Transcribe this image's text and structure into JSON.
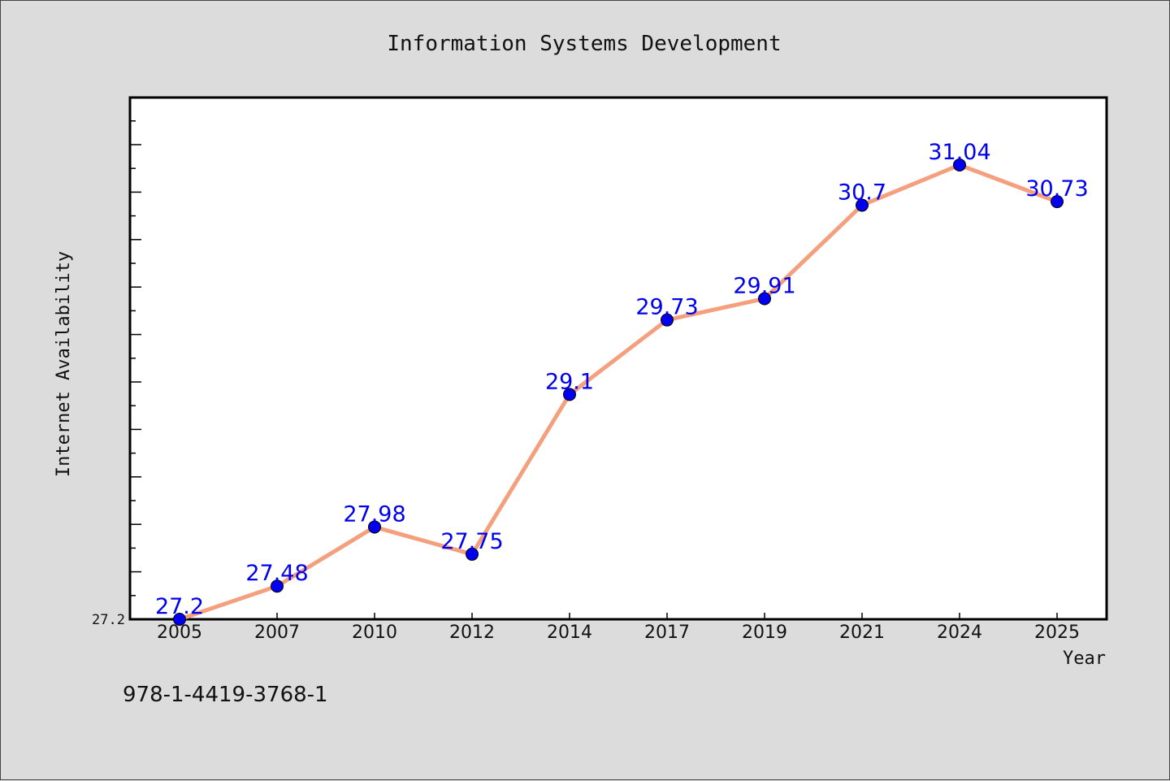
{
  "chart_data": {
    "type": "line",
    "title": "Information Systems Development",
    "xlabel": "Year",
    "ylabel": "Internet Availability",
    "categories": [
      "2005",
      "2007",
      "2010",
      "2012",
      "2014",
      "2017",
      "2019",
      "2021",
      "2024",
      "2025"
    ],
    "series": [
      {
        "values": [
          27.2,
          27.48,
          27.98,
          27.75,
          29.1,
          29.73,
          29.91,
          30.7,
          31.04,
          30.73
        ],
        "labels": [
          "27.2",
          "27.48",
          "27.98",
          "27.75",
          "29.1",
          "29.73",
          "29.91",
          "30.7",
          "31.04",
          "30.73"
        ]
      }
    ],
    "yticks": [
      "27.2"
    ],
    "ylim": [
      27.2,
      31.61
    ],
    "grid": false,
    "legend": "none",
    "line_color": "#f4a07e",
    "marker_color": "#0000ee",
    "label_color": "#0000ee"
  },
  "footer": {
    "isbn": "978-1-4419-3768-1"
  }
}
